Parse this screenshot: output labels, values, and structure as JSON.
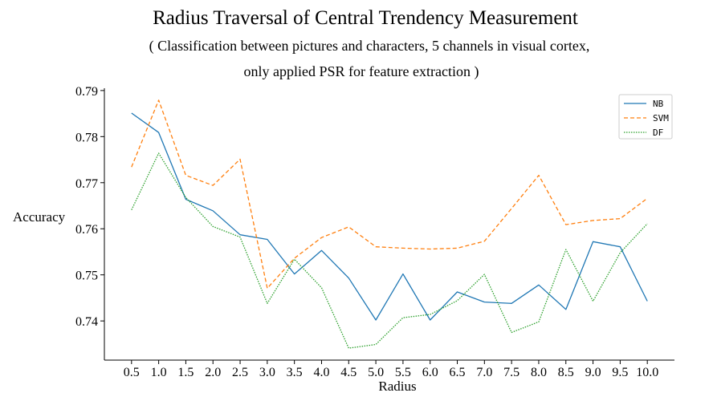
{
  "chart_data": {
    "type": "line",
    "title": "Radius Traversal of Central Trendency Measurement",
    "subtitle_line1": "( Classification between pictures and characters, 5 channels in visual cortex,",
    "subtitle_line2": "only applied PSR for feature extraction )",
    "xlabel": "Radius",
    "ylabel": "Accuracy",
    "x": [
      0.5,
      1.0,
      1.5,
      2.0,
      2.5,
      3.0,
      3.5,
      4.0,
      4.5,
      5.0,
      5.5,
      6.0,
      6.5,
      7.0,
      7.5,
      8.0,
      8.5,
      9.0,
      9.5,
      10.0
    ],
    "x_tick_labels": [
      "0.5",
      "1.0",
      "1.5",
      "2.0",
      "2.5",
      "3.0",
      "3.5",
      "4.0",
      "4.5",
      "5.0",
      "5.5",
      "6.0",
      "6.5",
      "7.0",
      "7.5",
      "8.0",
      "8.5",
      "9.0",
      "9.5",
      "10.0"
    ],
    "xlim": [
      0.0,
      10.5
    ],
    "ylim": [
      0.7315,
      0.7905
    ],
    "y_ticks": [
      0.74,
      0.75,
      0.76,
      0.77,
      0.78,
      0.79
    ],
    "y_tick_labels": [
      "0.74",
      "0.75",
      "0.76",
      "0.77",
      "0.78",
      "0.79"
    ],
    "grid": false,
    "legend_position": "top-right",
    "series": [
      {
        "name": "NB",
        "color": "#1f77b4",
        "dash": "solid",
        "values": [
          0.7851,
          0.7809,
          0.7664,
          0.7639,
          0.7587,
          0.7577,
          0.7502,
          0.7553,
          0.7493,
          0.7402,
          0.7502,
          0.7402,
          0.7463,
          0.7441,
          0.7438,
          0.7478,
          0.7425,
          0.7572,
          0.7561,
          0.7443
        ]
      },
      {
        "name": "SVM",
        "color": "#ff7f0e",
        "dash": "dashed",
        "values": [
          0.7734,
          0.7879,
          0.7716,
          0.7694,
          0.7751,
          0.7471,
          0.7536,
          0.7581,
          0.7604,
          0.7561,
          0.7558,
          0.7556,
          0.7558,
          0.7573,
          0.7644,
          0.7716,
          0.7609,
          0.7618,
          0.7622,
          0.7666
        ]
      },
      {
        "name": "DF",
        "color": "#2ca02c",
        "dash": "dotted",
        "values": [
          0.7641,
          0.7764,
          0.7668,
          0.7605,
          0.7582,
          0.7438,
          0.7534,
          0.7472,
          0.7341,
          0.7349,
          0.7407,
          0.7414,
          0.7444,
          0.7501,
          0.7375,
          0.7398,
          0.7555,
          0.7443,
          0.7548,
          0.7611
        ]
      }
    ]
  }
}
